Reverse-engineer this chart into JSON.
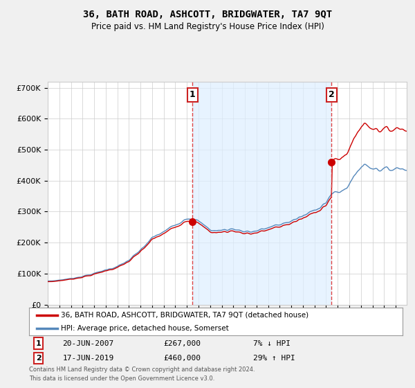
{
  "title": "36, BATH ROAD, ASHCOTT, BRIDGWATER, TA7 9QT",
  "subtitle": "Price paid vs. HM Land Registry's House Price Index (HPI)",
  "legend_line1": "36, BATH ROAD, ASHCOTT, BRIDGWATER, TA7 9QT (detached house)",
  "legend_line2": "HPI: Average price, detached house, Somerset",
  "transaction1_date": "20-JUN-2007",
  "transaction1_price": 267000,
  "transaction1_label": "7% ↓ HPI",
  "transaction2_date": "17-JUN-2019",
  "transaction2_price": 460000,
  "transaction2_label": "29% ↑ HPI",
  "footer": "Contains HM Land Registry data © Crown copyright and database right 2024.\nThis data is licensed under the Open Government Licence v3.0.",
  "red_color": "#cc0000",
  "blue_color": "#5588bb",
  "shade_color": "#ddeeff",
  "dashed_color": "#dd4444",
  "background_color": "#f0f0f0",
  "plot_bg_color": "#ffffff",
  "ylim": [
    0,
    720000
  ],
  "yticks": [
    0,
    100000,
    200000,
    300000,
    400000,
    500000,
    600000,
    700000
  ],
  "ytick_labels": [
    "£0",
    "£100K",
    "£200K",
    "£300K",
    "£400K",
    "£500K",
    "£600K",
    "£700K"
  ]
}
